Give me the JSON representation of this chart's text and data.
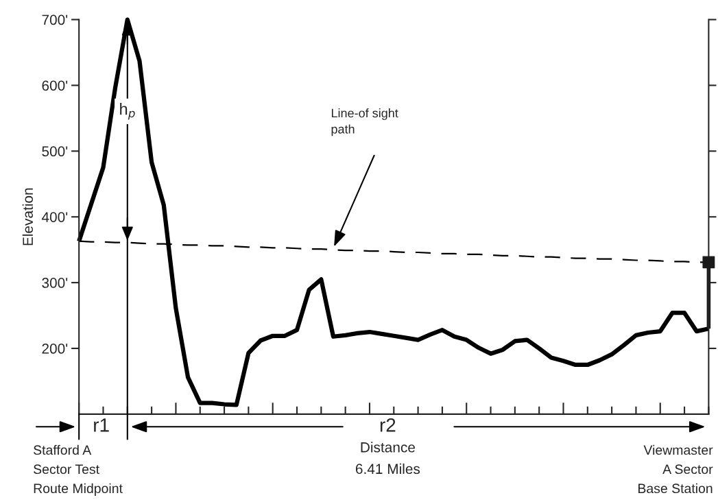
{
  "chart_data": {
    "type": "line",
    "ylabel": "Elevation",
    "xlabel": "Distance\n6.41 Miles",
    "categories": [
      null,
      null,
      null,
      null,
      null,
      null,
      null,
      null,
      null,
      null,
      null,
      null,
      null,
      null,
      null,
      null,
      null,
      null,
      null,
      null,
      null,
      null,
      null,
      null,
      null,
      null,
      null,
      null,
      null,
      null,
      null,
      null,
      null,
      null,
      null,
      null,
      null,
      null,
      null,
      null,
      null,
      null,
      null,
      null,
      null,
      null,
      null,
      null,
      null,
      null,
      null,
      null,
      null
    ],
    "ylim": [
      100,
      700
    ],
    "yticks": [
      {
        "value": 200,
        "label": "200'"
      },
      {
        "value": 300,
        "label": "300'"
      },
      {
        "value": 400,
        "label": "400'"
      },
      {
        "value": 500,
        "label": "500'"
      },
      {
        "value": 600,
        "label": "600'"
      },
      {
        "value": 700,
        "label": "700'"
      }
    ],
    "tick_labels": "y",
    "series": [
      {
        "color": "#000000",
        "line_style": "solid",
        "values": [
          363,
          419,
          475,
          597,
          700,
          637,
          483,
          418,
          261,
          156,
          117,
          117,
          115,
          114,
          193,
          212,
          219,
          219,
          228,
          289,
          305,
          218,
          220,
          223,
          225,
          222,
          219,
          216,
          213,
          221,
          228,
          218,
          213,
          201,
          192,
          198,
          211,
          213,
          200,
          186,
          181,
          175,
          175,
          182,
          191,
          205,
          220,
          224,
          226,
          254,
          254,
          226,
          230
        ]
      },
      {
        "type": "line",
        "color": "#000000",
        "line_style": "dashed",
        "values": [
          363,
          362,
          362,
          361,
          361,
          360,
          359,
          359,
          358,
          357,
          357,
          356,
          356,
          355,
          354,
          354,
          353,
          353,
          352,
          351,
          351,
          350,
          349,
          349,
          348,
          348,
          347,
          346,
          346,
          345,
          344,
          344,
          343,
          343,
          342,
          341,
          341,
          340,
          339,
          339,
          338,
          337,
          337,
          336,
          336,
          335,
          334,
          334,
          333,
          332,
          332,
          331,
          331
        ]
      },
      {
        "type": "scatter",
        "color": "#1a1a1a",
        "marker": "square",
        "values": [
          null,
          null,
          null,
          null,
          null,
          null,
          null,
          null,
          null,
          null,
          null,
          null,
          null,
          null,
          null,
          null,
          null,
          null,
          null,
          null,
          null,
          null,
          null,
          null,
          null,
          null,
          null,
          null,
          null,
          null,
          null,
          null,
          null,
          null,
          null,
          null,
          null,
          null,
          null,
          null,
          null,
          null,
          null,
          null,
          null,
          null,
          null,
          null,
          null,
          null,
          null,
          null,
          331
        ],
        "errors": [
          null,
          null,
          null,
          null,
          null,
          null,
          null,
          null,
          null,
          null,
          null,
          null,
          null,
          null,
          null,
          null,
          null,
          null,
          null,
          null,
          null,
          null,
          null,
          null,
          null,
          null,
          null,
          null,
          null,
          null,
          null,
          null,
          null,
          null,
          null,
          null,
          null,
          null,
          null,
          null,
          null,
          null,
          null,
          null,
          null,
          null,
          null,
          null,
          null,
          null,
          null,
          null,
          [
            230,
            331
          ]
        ]
      }
    ],
    "annotations": [
      "h$_{p}$",
      "Line-of sight\npath",
      "r1",
      "r2",
      "Stafford A\nSector Test\nRoute Midpoint",
      "Viewmaster\nA Sector\nBase Station"
    ]
  }
}
